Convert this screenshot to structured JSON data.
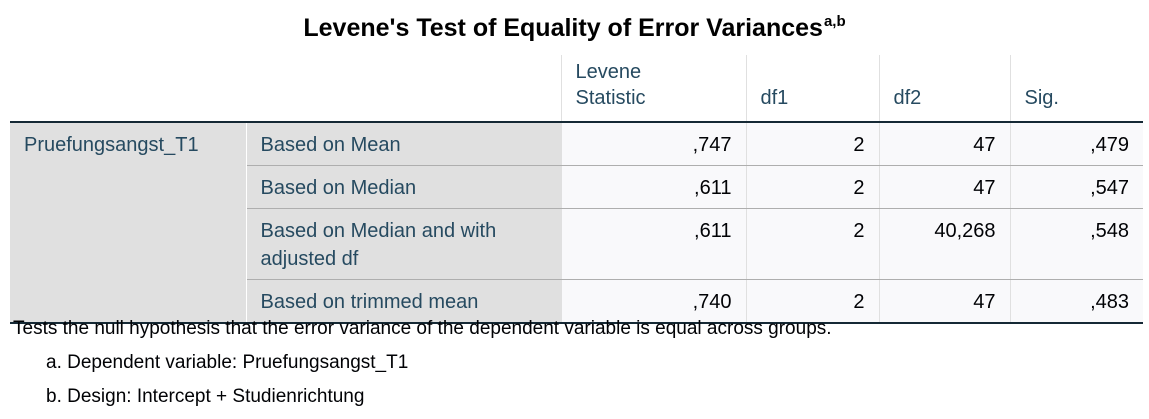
{
  "title": "Levene's Test of Equality of Error Variances",
  "title_superscript": "a,b",
  "columns": [
    "Levene Statistic",
    "df1",
    "df2",
    "Sig."
  ],
  "variable": "Pruefungsangst_T1",
  "rows": [
    {
      "label": "Based on Mean",
      "levene": ",747",
      "df1": "2",
      "df2": "47",
      "sig": ",479"
    },
    {
      "label": "Based on Median",
      "levene": ",611",
      "df1": "2",
      "df2": "47",
      "sig": ",547"
    },
    {
      "label": "Based on Median and with adjusted df",
      "levene": ",611",
      "df1": "2",
      "df2": "40,268",
      "sig": ",548"
    },
    {
      "label": "Based on trimmed mean",
      "levene": ",740",
      "df1": "2",
      "df2": "47",
      "sig": ",483"
    }
  ],
  "footnotes": {
    "note": "Tests the null hypothesis that the error variance of the dependent variable is equal across groups.",
    "a": "a. Dependent variable: Pruefungsangst_T1",
    "b": "b. Design: Intercept + Studienrichtung"
  },
  "colors": {
    "header_text": "#264a60",
    "row_header_bg": "#e0e0e0",
    "rule": "#152935"
  }
}
